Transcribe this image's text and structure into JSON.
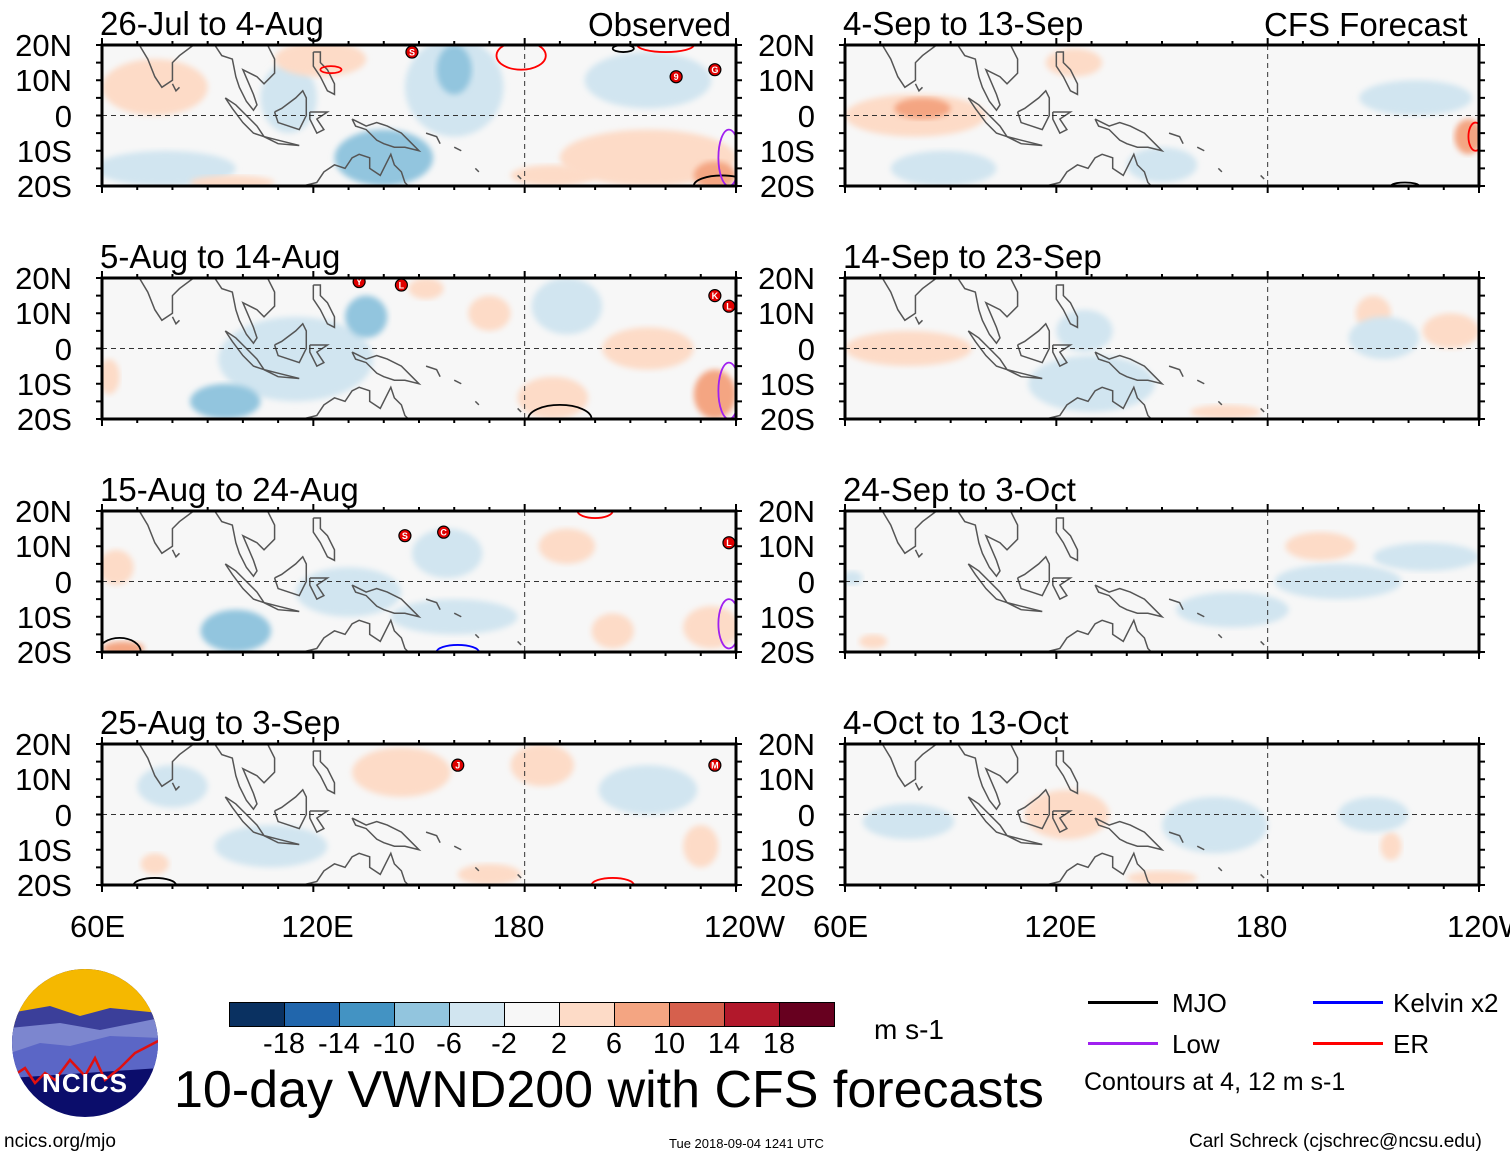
{
  "title": "10-day VWND200 with CFS forecasts",
  "labels": {
    "observed": "Observed",
    "forecast": "CFS Forecast"
  },
  "lat_ticks": [
    "20N",
    "10N",
    "0",
    "10S",
    "20S"
  ],
  "lon_ticks": [
    "60E",
    "120E",
    "180",
    "120W"
  ],
  "units": "m s-1",
  "colorbar": {
    "colors": [
      "#0a3161",
      "#2166ac",
      "#4393c3",
      "#92c5de",
      "#d1e5f0",
      "#f7f7f7",
      "#fddbc7",
      "#f4a582",
      "#d6604d",
      "#b2182b",
      "#67001f"
    ],
    "labels": [
      "-18",
      "-14",
      "-10",
      "-6",
      "-2",
      "2",
      "6",
      "10",
      "14",
      "18"
    ]
  },
  "legend": {
    "items": [
      {
        "label": "MJO",
        "color": "#000000"
      },
      {
        "label": "Kelvin x2",
        "color": "#0000ff"
      },
      {
        "label": "Low",
        "color": "#a020f0"
      },
      {
        "label": "ER",
        "color": "#ff0000"
      }
    ],
    "contours_note": "Contours at 4, 12 m s-1"
  },
  "footer": {
    "url": "ncics.org/mjo",
    "timestamp": "Tue 2018-09-04 1241 UTC",
    "credit": "Carl Schreck (cjschrec@ncsu.edu)",
    "logo_text": "NCICS"
  },
  "chart_data": {
    "type": "heatmap",
    "lon_range": [
      60,
      240
    ],
    "lat_range": [
      -20,
      20
    ],
    "panels": [
      {
        "title": "26-Jul to 4-Aug",
        "group": "observed",
        "anomalies": [
          [
            75,
            8,
            15,
            8,
            4
          ],
          [
            122,
            16,
            13,
            5,
            4
          ],
          [
            160,
            8,
            14,
            14,
            -4
          ],
          [
            160,
            13,
            5,
            7,
            -8
          ],
          [
            140,
            -12,
            14,
            8,
            -6
          ],
          [
            78,
            -15,
            20,
            5,
            -4
          ],
          [
            215,
            -12,
            25,
            8,
            6
          ],
          [
            234,
            -17,
            6,
            4,
            10
          ],
          [
            215,
            10,
            18,
            8,
            -3
          ],
          [
            97,
            -19,
            12,
            2,
            4
          ],
          [
            188,
            -17,
            12,
            3,
            4
          ],
          [
            113,
            5,
            8,
            10,
            -3
          ]
        ],
        "contours": [
          [
            "ER",
            179,
            17,
            7,
            4
          ],
          [
            "ER",
            125,
            13,
            3,
            1
          ],
          [
            "MJO",
            208,
            19,
            3,
            1
          ],
          [
            "MJO",
            236,
            -20,
            8,
            3
          ],
          [
            "Low",
            238,
            -12,
            3,
            8
          ],
          [
            "ER",
            220,
            20,
            8,
            2
          ]
        ],
        "storms": [
          [
            "S",
            148,
            18
          ],
          [
            "9",
            223,
            11
          ],
          [
            "G",
            234,
            13
          ]
        ]
      },
      {
        "title": "5-Aug to 14-Aug",
        "group": "observed",
        "anomalies": [
          [
            115,
            -3,
            22,
            12,
            -4
          ],
          [
            135,
            9,
            6,
            6,
            -8
          ],
          [
            95,
            -15,
            10,
            5,
            -8
          ],
          [
            188,
            -14,
            10,
            6,
            6
          ],
          [
            215,
            0,
            13,
            6,
            4
          ],
          [
            234,
            -13,
            6,
            7,
            8
          ],
          [
            192,
            12,
            10,
            8,
            -3
          ],
          [
            152,
            17,
            5,
            3,
            4
          ],
          [
            62,
            -8,
            3,
            5,
            4
          ],
          [
            170,
            10,
            6,
            5,
            4
          ]
        ],
        "contours": [
          [
            "MJO",
            190,
            -20,
            9,
            4
          ],
          [
            "Low",
            238,
            -12,
            3,
            8
          ]
        ],
        "storms": [
          [
            "Y",
            133,
            19
          ],
          [
            "L",
            145,
            18
          ],
          [
            "K",
            234,
            15
          ],
          [
            "L",
            238,
            12
          ]
        ]
      },
      {
        "title": "15-Aug to 24-Aug",
        "group": "observed",
        "anomalies": [
          [
            98,
            -14,
            10,
            6,
            -6
          ],
          [
            158,
            8,
            10,
            7,
            -4
          ],
          [
            64,
            4,
            5,
            5,
            3
          ],
          [
            192,
            10,
            8,
            5,
            4
          ],
          [
            205,
            -14,
            6,
            5,
            4
          ],
          [
            233,
            -13,
            8,
            6,
            6
          ],
          [
            160,
            -10,
            18,
            5,
            -3
          ],
          [
            66,
            -19,
            6,
            2,
            8
          ],
          [
            130,
            -3,
            15,
            7,
            -3
          ]
        ],
        "contours": [
          [
            "MJO",
            65,
            -20,
            6,
            4
          ],
          [
            "ER",
            200,
            20,
            5,
            2
          ],
          [
            "Kelvin",
            161,
            -20,
            6,
            2
          ],
          [
            "Low",
            238,
            -12,
            3,
            7
          ]
        ],
        "storms": [
          [
            "S",
            146,
            13
          ],
          [
            "C",
            157,
            14
          ],
          [
            "L",
            238,
            11
          ]
        ]
      },
      {
        "title": "25-Aug to 3-Sep",
        "group": "observed",
        "anomalies": [
          [
            145,
            12,
            14,
            7,
            4
          ],
          [
            108,
            -9,
            16,
            6,
            -3
          ],
          [
            185,
            14,
            9,
            6,
            3
          ],
          [
            230,
            -9,
            5,
            6,
            6
          ],
          [
            215,
            7,
            14,
            7,
            -3
          ],
          [
            75,
            -14,
            4,
            3,
            3
          ],
          [
            170,
            -17,
            9,
            3,
            3
          ],
          [
            80,
            8,
            10,
            6,
            -3
          ]
        ],
        "contours": [
          [
            "MJO",
            75,
            -20,
            6,
            2
          ],
          [
            "ER",
            205,
            -20,
            6,
            2
          ]
        ],
        "storms": [
          [
            "J",
            161,
            14
          ],
          [
            "M",
            234,
            14
          ]
        ]
      },
      {
        "title": "4-Sep to 13-Sep",
        "group": "forecast",
        "anomalies": [
          [
            80,
            0,
            20,
            6,
            4
          ],
          [
            82,
            2,
            8,
            3,
            8
          ],
          [
            150,
            -14,
            10,
            5,
            -3
          ],
          [
            237,
            -6,
            4,
            5,
            8
          ],
          [
            222,
            5,
            16,
            5,
            -3
          ],
          [
            88,
            -15,
            15,
            5,
            -3
          ],
          [
            125,
            15,
            8,
            4,
            3
          ]
        ],
        "contours": [
          [
            "ER",
            239,
            -6,
            2,
            4
          ],
          [
            "MJO",
            219,
            -20,
            4,
            1
          ]
        ],
        "storms": []
      },
      {
        "title": "14-Sep to 23-Sep",
        "group": "forecast",
        "anomalies": [
          [
            78,
            0,
            18,
            5,
            3
          ],
          [
            130,
            -10,
            18,
            8,
            -3
          ],
          [
            210,
            10,
            5,
            5,
            3
          ],
          [
            213,
            3,
            10,
            6,
            -3
          ],
          [
            232,
            5,
            8,
            5,
            4
          ],
          [
            168,
            -18,
            10,
            2,
            3
          ],
          [
            128,
            5,
            8,
            6,
            -3
          ]
        ],
        "contours": [],
        "storms": []
      },
      {
        "title": "24-Sep to 3-Oct",
        "group": "forecast",
        "anomalies": [
          [
            170,
            -8,
            16,
            5,
            -3
          ],
          [
            200,
            0,
            18,
            5,
            -3
          ],
          [
            225,
            7,
            15,
            4,
            -3
          ],
          [
            62,
            1,
            3,
            2,
            -3
          ],
          [
            195,
            10,
            10,
            4,
            3
          ],
          [
            68,
            -17,
            4,
            2,
            3
          ]
        ],
        "contours": [],
        "storms": []
      },
      {
        "title": "4-Oct to 13-Oct",
        "group": "forecast",
        "anomalies": [
          [
            78,
            -2,
            13,
            5,
            -3
          ],
          [
            123,
            0,
            12,
            7,
            3
          ],
          [
            165,
            -3,
            15,
            8,
            -3
          ],
          [
            215,
            -9,
            3,
            4,
            3
          ],
          [
            210,
            0,
            10,
            5,
            -3
          ],
          [
            150,
            -18,
            10,
            2,
            3
          ]
        ],
        "contours": [],
        "storms": []
      }
    ]
  }
}
